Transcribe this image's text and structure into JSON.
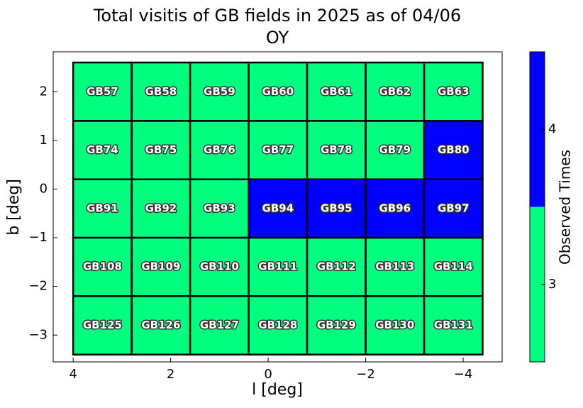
{
  "chart_data": {
    "type": "heatmap",
    "title": "Total visitis of GB fields in 2025 as of 04/06",
    "subtitle": "OY",
    "x_label": "l [deg]",
    "y_label": "b [deg]",
    "x": [
      3.4,
      2.2,
      1.0,
      -0.2,
      -1.4,
      -2.6,
      -3.8
    ],
    "y": [
      2.0,
      0.8,
      -0.4,
      -1.6,
      -2.8
    ],
    "labels": [
      [
        "GB57",
        "GB58",
        "GB59",
        "GB60",
        "GB61",
        "GB62",
        "GB63"
      ],
      [
        "GB74",
        "GB75",
        "GB76",
        "GB77",
        "GB78",
        "GB79",
        "GB80"
      ],
      [
        "GB91",
        "GB92",
        "GB93",
        "GB94",
        "GB95",
        "GB96",
        "GB97"
      ],
      [
        "GB108",
        "GB109",
        "GB110",
        "GB111",
        "GB112",
        "GB113",
        "GB114"
      ],
      [
        "GB125",
        "GB126",
        "GB127",
        "GB128",
        "GB129",
        "GB130",
        "GB131"
      ]
    ],
    "values": [
      [
        3,
        3,
        3,
        3,
        3,
        3,
        3
      ],
      [
        3,
        3,
        3,
        3,
        3,
        3,
        4
      ],
      [
        3,
        3,
        3,
        4,
        4,
        4,
        4
      ],
      [
        3,
        3,
        3,
        3,
        3,
        3,
        3
      ],
      [
        3,
        3,
        3,
        3,
        3,
        3,
        3
      ]
    ],
    "xlim": [
      4.41,
      -4.8
    ],
    "ylim": [
      -3.55,
      2.82
    ],
    "xticks": [
      4,
      2,
      0,
      {
        "value": -2,
        "label": "−2"
      },
      {
        "value": -4,
        "label": "−4"
      }
    ],
    "yticks": [
      2,
      1,
      0,
      {
        "value": -1,
        "label": "−1"
      },
      {
        "value": -2,
        "label": "−2"
      },
      {
        "value": -3,
        "label": "−3"
      }
    ],
    "colorbar": {
      "label": "Observed Times",
      "lim": [
        2.5,
        4.5
      ],
      "ticks": [
        3,
        4
      ],
      "colors": [
        "#00ff7f",
        "#0000ff"
      ]
    }
  }
}
